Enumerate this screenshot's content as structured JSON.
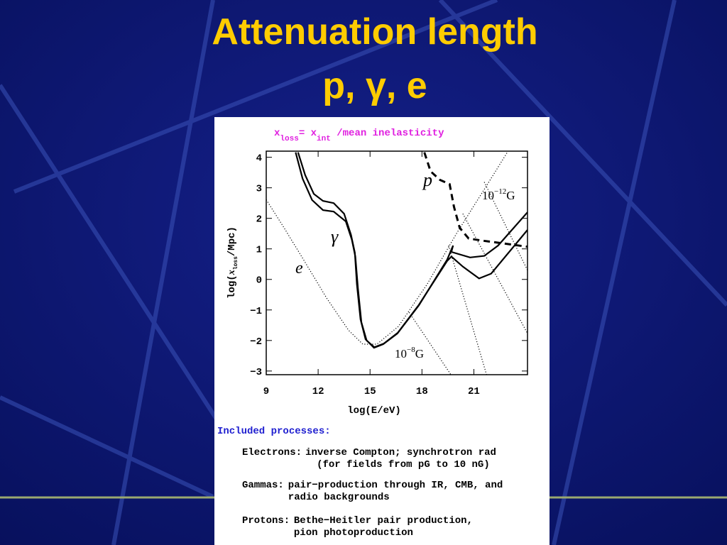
{
  "slide": {
    "title": "Attenuation length",
    "subtitle": "p, γ, e"
  },
  "chart_data": {
    "type": "line",
    "title": [
      "x",
      "loss",
      "= x",
      "int",
      " /mean inelasticity"
    ],
    "x_label": "log(E/eV)",
    "y_label": [
      "log(",
      "x",
      "loss",
      "/Mpc)"
    ],
    "xlim": [
      9,
      24.1
    ],
    "ylim": [
      -3.12,
      4.2
    ],
    "xticks": [
      9,
      12,
      15,
      18,
      21
    ],
    "yticks": [
      {
        "value": -3,
        "label": "−3"
      },
      {
        "value": -2,
        "label": "−2"
      },
      {
        "value": -1,
        "label": "−1"
      },
      0,
      1,
      2,
      3,
      4
    ],
    "series": [
      {
        "color": "#000000",
        "dash": "dashed",
        "x": [
          18.14,
          18.5,
          19.04,
          19.6,
          19.85,
          20.18,
          20.7,
          21.5,
          22.7,
          24.1
        ],
        "values": [
          4.16,
          3.54,
          3.26,
          3.12,
          2.38,
          1.69,
          1.34,
          1.27,
          1.18,
          1.07
        ]
      },
      {
        "color": "#000000",
        "dash": "solid",
        "x": [
          10.84,
          11.25,
          11.75,
          12.28,
          12.9,
          13.5,
          13.9,
          14.12,
          14.24,
          14.45,
          14.74,
          15.23,
          15.76,
          16.58,
          17.82,
          19.46,
          19.8,
          19.7,
          20.78,
          21.6,
          22.4,
          24.1
        ],
        "values": [
          4.16,
          3.42,
          2.8,
          2.57,
          2.5,
          2.15,
          1.46,
          0.88,
          -0.16,
          -1.31,
          -1.96,
          -2.24,
          -2.12,
          -1.77,
          -0.85,
          0.65,
          1.11,
          0.9,
          0.72,
          0.77,
          1.11,
          2.2
        ]
      },
      {
        "color": "#000000",
        "dash": "solid",
        "x": [
          10.7,
          11.1,
          11.65,
          12.28,
          12.9,
          13.6,
          13.95,
          14.15,
          14.3,
          14.5,
          14.8,
          15.25,
          15.8,
          16.6,
          17.8,
          19.45,
          19.7,
          20.36,
          21.3,
          22.0,
          24.1
        ],
        "values": [
          4.16,
          3.3,
          2.6,
          2.27,
          2.22,
          1.9,
          1.3,
          0.75,
          -0.3,
          -1.4,
          -2.0,
          -2.22,
          -2.1,
          -1.75,
          -0.85,
          0.6,
          0.75,
          0.42,
          0.03,
          0.19,
          1.62
        ]
      },
      {
        "color": "#000000",
        "dash": "dotted",
        "x": [
          9,
          10.03,
          11.27,
          12.5,
          13.75,
          14.58,
          15.4,
          16.64,
          18.3,
          19.95,
          22.0,
          22.93
        ],
        "values": [
          2.61,
          1.69,
          0.54,
          -0.62,
          -1.66,
          -2.12,
          -2.12,
          -1.54,
          -0.16,
          1.46,
          3.31,
          4.16
        ]
      },
      {
        "color": "#000000",
        "dash": "dotted",
        "x": [
          17.26,
          19.66
        ],
        "values": [
          -1.08,
          -3.11
        ]
      },
      {
        "color": "#000000",
        "dash": "dotted",
        "x": [
          19.54,
          21.73
        ],
        "values": [
          1.11,
          -3.11
        ]
      },
      {
        "color": "#000000",
        "dash": "dotted",
        "x": [
          20.36,
          24.1
        ],
        "values": [
          2.15,
          -1.77
        ]
      },
      {
        "color": "#000000",
        "dash": "dotted",
        "x": [
          21.6,
          24.1
        ],
        "values": [
          3.19,
          0.3
        ]
      }
    ],
    "annotations": [
      [
        "p"
      ],
      [
        "γ"
      ],
      [
        "e"
      ],
      [
        "10",
        "−12",
        "G"
      ],
      [
        "10",
        "−8",
        "G"
      ]
    ]
  },
  "notes": {
    "heading": "Included processes:",
    "items": [
      {
        "label": "Electrons:",
        "lines": [
          "inverse Compton; synchrotron rad",
          "(for fields from pG to 10 nG)"
        ]
      },
      {
        "label": "Gammas:",
        "lines": [
          "pair−production through IR, CMB, and",
          "radio backgrounds"
        ]
      },
      {
        "label": "Protons:",
        "lines": [
          "Bethe−Heitler pair production,",
          "pion photoproduction"
        ]
      }
    ]
  }
}
